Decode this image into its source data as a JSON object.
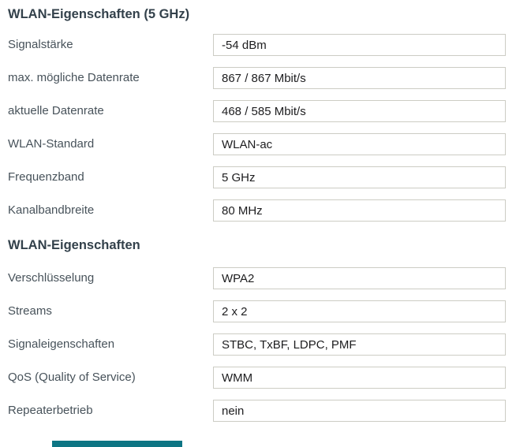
{
  "colors": {
    "field_border": "#ccccc4",
    "title_text": "#33414b",
    "label_text": "#47525a",
    "value_text": "#1d1d1f",
    "teal_accent": "#0d7584"
  },
  "sections": [
    {
      "title": "WLAN-Eigenschaften (5 GHz)",
      "rows": [
        {
          "label": "Signalstärke",
          "value": "-54 dBm"
        },
        {
          "label": "max. mögliche Datenrate",
          "value": "867 / 867 Mbit/s"
        },
        {
          "label": "aktuelle Datenrate",
          "value": "468 / 585 Mbit/s"
        },
        {
          "label": "WLAN-Standard",
          "value": "WLAN-ac"
        },
        {
          "label": "Frequenzband",
          "value": "5 GHz"
        },
        {
          "label": "Kanalbandbreite",
          "value": "80 MHz"
        }
      ]
    },
    {
      "title": "WLAN-Eigenschaften",
      "rows": [
        {
          "label": "Verschlüsselung",
          "value": "WPA2"
        },
        {
          "label": "Streams",
          "value": "2 x 2"
        },
        {
          "label": "Signaleigenschaften",
          "value": "STBC, TxBF, LDPC, PMF"
        },
        {
          "label": "QoS (Quality of Service)",
          "value": "WMM"
        },
        {
          "label": "Repeaterbetrieb",
          "value": "nein"
        }
      ]
    }
  ]
}
